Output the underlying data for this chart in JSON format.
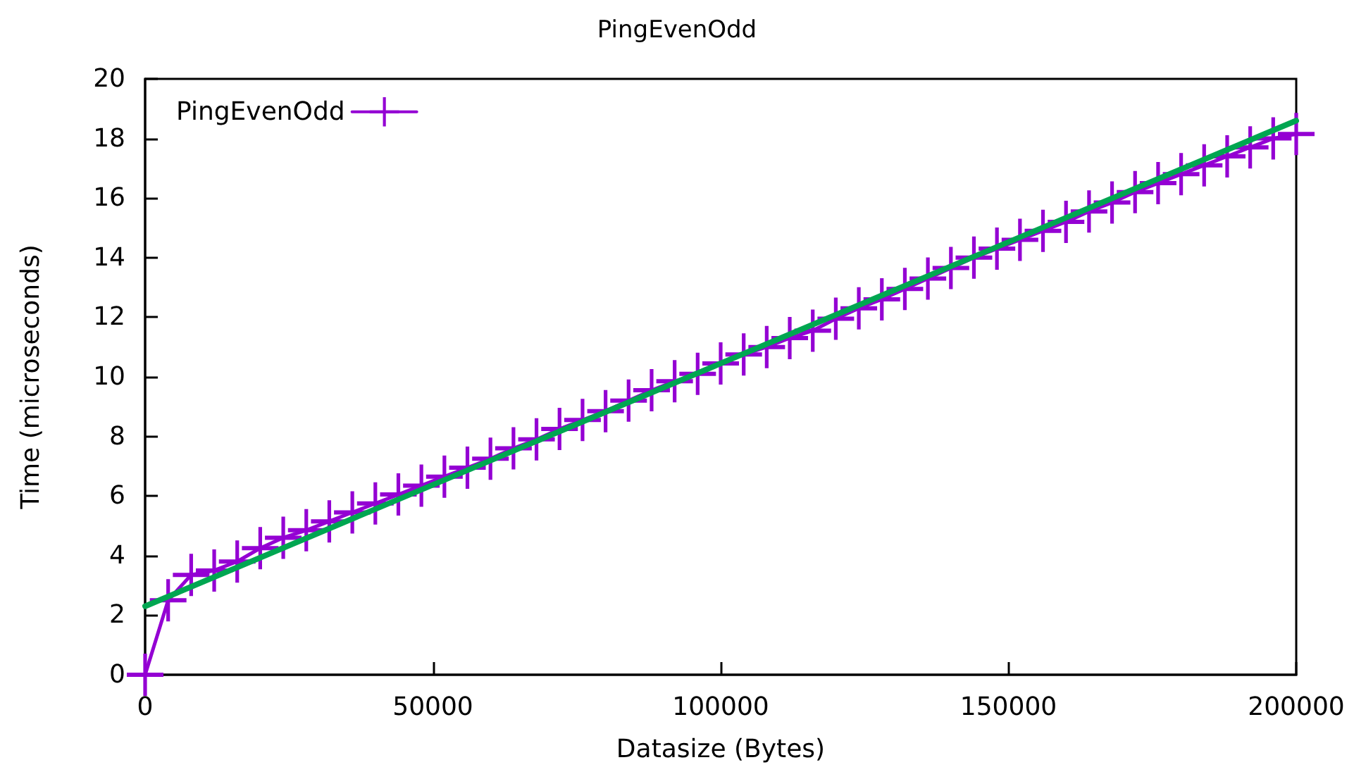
{
  "chart_data": {
    "type": "line",
    "title": "PingEvenOdd",
    "xlabel": "Datasize (Bytes)",
    "ylabel": "Time (microseconds)",
    "x": [
      0,
      4000,
      8000,
      12000,
      16000,
      20000,
      24000,
      28000,
      32000,
      36000,
      40000,
      44000,
      48000,
      52000,
      56000,
      60000,
      64000,
      68000,
      72000,
      76000,
      80000,
      84000,
      88000,
      92000,
      96000,
      100000,
      104000,
      108000,
      112000,
      116000,
      120000,
      124000,
      128000,
      132000,
      136000,
      140000,
      144000,
      148000,
      152000,
      156000,
      160000,
      164000,
      168000,
      172000,
      176000,
      180000,
      184000,
      188000,
      192000,
      196000,
      200000
    ],
    "series": [
      {
        "name": "PingEvenOdd",
        "color": "#9400d3",
        "marker": "cross",
        "values": [
          0,
          2.5,
          3.35,
          3.5,
          3.8,
          4.25,
          4.6,
          4.85,
          5.15,
          5.45,
          5.75,
          6.05,
          6.35,
          6.65,
          6.95,
          7.25,
          7.6,
          7.9,
          8.25,
          8.55,
          8.85,
          9.2,
          9.55,
          9.85,
          10.1,
          10.45,
          10.75,
          11.0,
          11.3,
          11.55,
          11.95,
          12.3,
          12.6,
          12.95,
          13.3,
          13.65,
          14.0,
          14.3,
          14.6,
          14.9,
          15.2,
          15.55,
          15.85,
          16.2,
          16.5,
          16.8,
          17.1,
          17.4,
          17.7,
          18.0,
          18.15
        ]
      },
      {
        "color": "#00a651",
        "marker": "none",
        "x": [
          0,
          200000
        ],
        "values": [
          2.3,
          18.6
        ]
      }
    ],
    "xlim": [
      0,
      200000
    ],
    "xticks": [
      0,
      50000,
      100000,
      150000,
      200000
    ],
    "ylim": [
      0,
      20
    ],
    "yticks": [
      0,
      2,
      4,
      6,
      8,
      10,
      12,
      14,
      16,
      18,
      20
    ],
    "grid": false,
    "legend": "top left"
  }
}
